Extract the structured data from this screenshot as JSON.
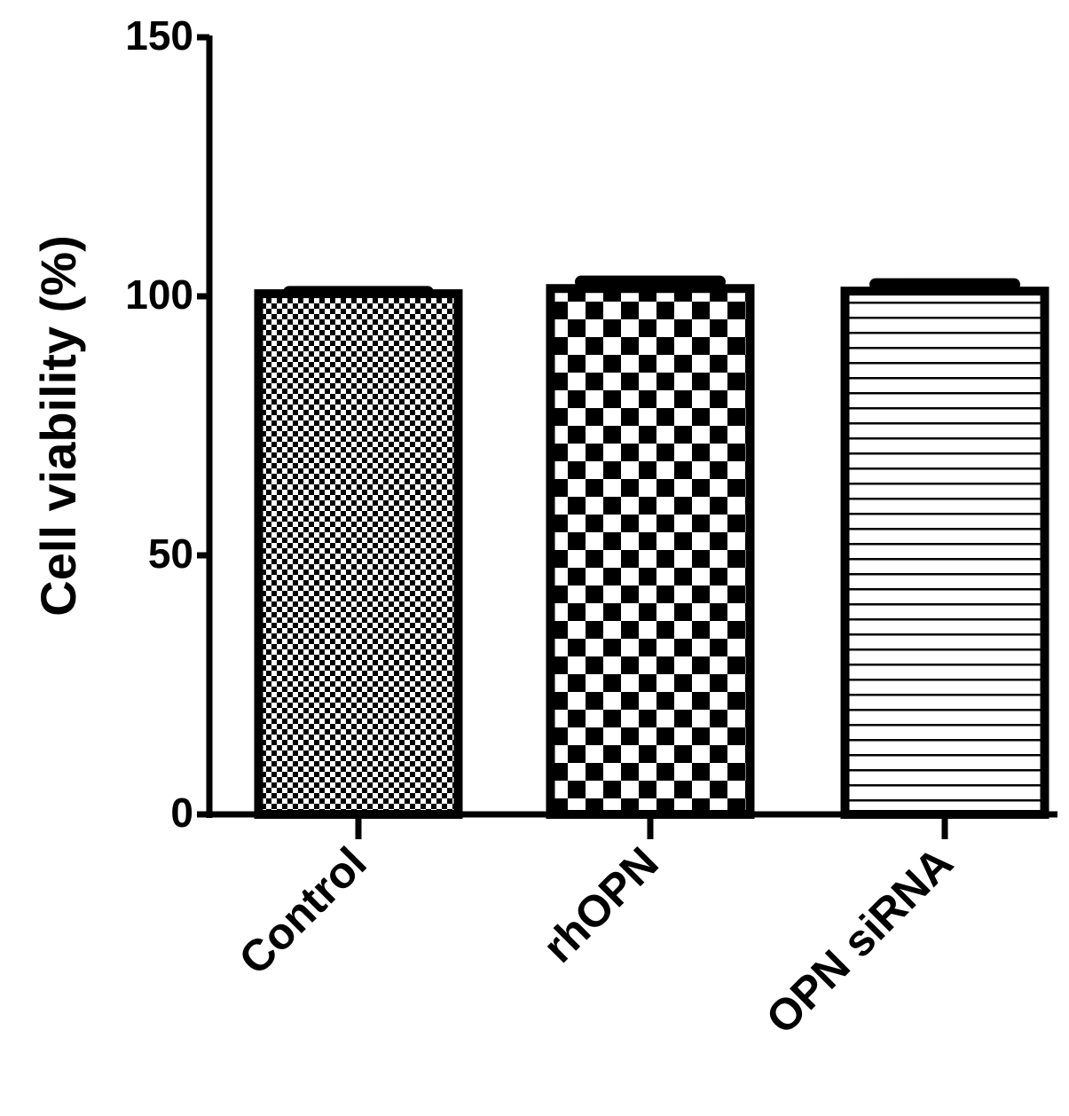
{
  "chart_data": {
    "type": "bar",
    "categories": [
      "Control",
      "rhOPN",
      "OPN siRNA"
    ],
    "values": [
      100.5,
      101.5,
      101.0
    ],
    "errors": [
      0.3,
      1.3,
      1.3
    ],
    "patterns": [
      "fine-checker",
      "coarse-checker",
      "horizontal-lines"
    ],
    "xlabel": "",
    "ylabel": "Cell viability (%)",
    "ylim": [
      0,
      150
    ],
    "yticks": [
      0,
      50,
      100,
      150
    ],
    "grid": false,
    "legend": "none",
    "colors": {
      "ink": "#000000",
      "fill": "#ffffff"
    }
  }
}
